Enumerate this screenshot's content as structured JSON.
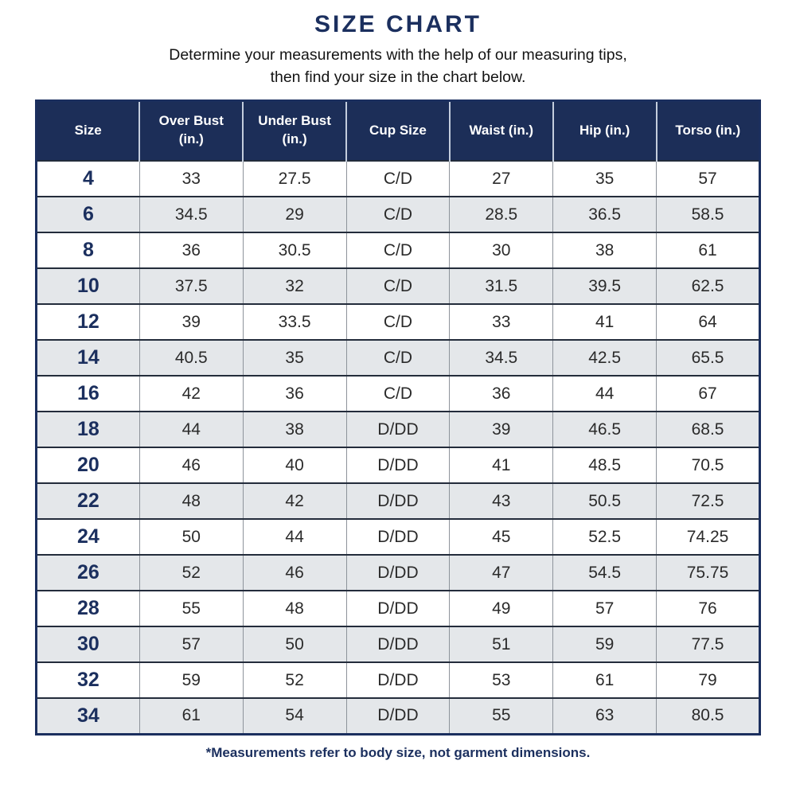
{
  "title": "SIZE CHART",
  "subtitle": {
    "line1": "Determine your measurements with the help of our measuring tips,",
    "line2": "then find your size in the chart below."
  },
  "footnote": "*Measurements refer to body size, not garment dimensions.",
  "colors": {
    "navy": "#1b2f5e",
    "header_background": "#1c2e58",
    "header_text": "#ffffff",
    "alternate_row_background": "#e4e7ea",
    "cell_text": "#2b2b2b"
  },
  "chart_data": {
    "type": "table",
    "title": "SIZE CHART",
    "columns": [
      "Size",
      "Over Bust\n(in.)",
      "Under Bust\n(in.)",
      "Cup Size",
      "Waist (in.)",
      "Hip (in.)",
      "Torso (in.)"
    ],
    "rows": [
      [
        "4",
        "33",
        "27.5",
        "C/D",
        "27",
        "35",
        "57"
      ],
      [
        "6",
        "34.5",
        "29",
        "C/D",
        "28.5",
        "36.5",
        "58.5"
      ],
      [
        "8",
        "36",
        "30.5",
        "C/D",
        "30",
        "38",
        "61"
      ],
      [
        "10",
        "37.5",
        "32",
        "C/D",
        "31.5",
        "39.5",
        "62.5"
      ],
      [
        "12",
        "39",
        "33.5",
        "C/D",
        "33",
        "41",
        "64"
      ],
      [
        "14",
        "40.5",
        "35",
        "C/D",
        "34.5",
        "42.5",
        "65.5"
      ],
      [
        "16",
        "42",
        "36",
        "C/D",
        "36",
        "44",
        "67"
      ],
      [
        "18",
        "44",
        "38",
        "D/DD",
        "39",
        "46.5",
        "68.5"
      ],
      [
        "20",
        "46",
        "40",
        "D/DD",
        "41",
        "48.5",
        "70.5"
      ],
      [
        "22",
        "48",
        "42",
        "D/DD",
        "43",
        "50.5",
        "72.5"
      ],
      [
        "24",
        "50",
        "44",
        "D/DD",
        "45",
        "52.5",
        "74.25"
      ],
      [
        "26",
        "52",
        "46",
        "D/DD",
        "47",
        "54.5",
        "75.75"
      ],
      [
        "28",
        "55",
        "48",
        "D/DD",
        "49",
        "57",
        "76"
      ],
      [
        "30",
        "57",
        "50",
        "D/DD",
        "51",
        "59",
        "77.5"
      ],
      [
        "32",
        "59",
        "52",
        "D/DD",
        "53",
        "61",
        "79"
      ],
      [
        "34",
        "61",
        "54",
        "D/DD",
        "55",
        "63",
        "80.5"
      ]
    ]
  }
}
